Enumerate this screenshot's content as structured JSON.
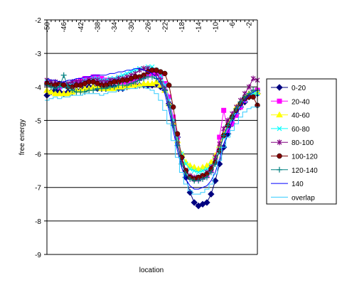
{
  "chart_data": {
    "type": "line",
    "title": "",
    "xlabel": "location",
    "ylabel": "free energy",
    "xlim": [
      -50,
      0
    ],
    "ylim": [
      -9,
      -2
    ],
    "yticks": [
      -2,
      -3,
      -4,
      -5,
      -6,
      -7,
      -8,
      -9
    ],
    "xticks": [
      -50,
      -46,
      -42,
      -38,
      -34,
      -30,
      -26,
      -22,
      -18,
      -14,
      -10,
      -6,
      -2
    ],
    "grid": "horizontal",
    "legend_position": "right",
    "x": [
      -50,
      -49,
      -48,
      -47,
      -46,
      -45,
      -44,
      -43,
      -42,
      -41,
      -40,
      -39,
      -38,
      -37,
      -36,
      -35,
      -34,
      -33,
      -32,
      -31,
      -30,
      -29,
      -28,
      -27,
      -26,
      -25,
      -24,
      -23,
      -22,
      -21,
      -20,
      -19,
      -18,
      -17,
      -16,
      -15,
      -14,
      -13,
      -12,
      -11,
      -10,
      -9,
      -8,
      -7,
      -6,
      -5,
      -4,
      -3,
      -2,
      -1,
      0
    ],
    "series": [
      {
        "name": "0-20",
        "color": "#000080",
        "marker": "diamond",
        "values": [
          -4.25,
          -4.15,
          -4.1,
          -4.15,
          -4.2,
          -4.15,
          -4.15,
          -4.1,
          -4.1,
          -4.05,
          -4.0,
          -4.0,
          -4.05,
          -4.05,
          -4.05,
          -4.0,
          -4.0,
          -4.05,
          -4.05,
          -4.0,
          -3.9,
          -3.95,
          -3.95,
          -3.95,
          -3.95,
          -3.95,
          -3.9,
          -4.0,
          -4.1,
          -4.5,
          -5.0,
          -5.5,
          -6.1,
          -6.7,
          -7.15,
          -7.45,
          -7.55,
          -7.5,
          -7.45,
          -7.2,
          -6.8,
          -6.3,
          -5.8,
          -5.4,
          -5.1,
          -4.8,
          -4.6,
          -4.45,
          -4.3,
          -4.2,
          -4.2
        ]
      },
      {
        "name": "20-40",
        "color": "#ff00ff",
        "marker": "square",
        "values": [
          -3.9,
          -3.95,
          -3.95,
          -4.0,
          -3.95,
          -3.95,
          -3.9,
          -3.85,
          -3.8,
          -3.75,
          -3.75,
          -3.7,
          -3.7,
          -3.75,
          -3.8,
          -3.8,
          -3.8,
          -3.85,
          -3.85,
          -3.85,
          -3.85,
          -3.8,
          -3.75,
          -3.7,
          -3.65,
          -3.6,
          -3.6,
          -3.7,
          -3.9,
          -4.3,
          -4.9,
          -5.5,
          -6.1,
          -6.5,
          -6.7,
          -6.75,
          -6.75,
          -6.7,
          -6.65,
          -6.5,
          -6.1,
          -5.5,
          -4.7,
          -5.3,
          -5.1,
          -4.85,
          -4.6,
          -4.4,
          -4.25,
          -4.15,
          -4.1
        ]
      },
      {
        "name": "40-60",
        "color": "#ffff00",
        "marker": "triangle",
        "values": [
          -4.1,
          -4.15,
          -4.2,
          -4.2,
          -4.2,
          -4.2,
          -4.15,
          -4.1,
          -4.1,
          -4.05,
          -4.05,
          -4.0,
          -4.0,
          -4.05,
          -4.05,
          -4.05,
          -4.05,
          -4.0,
          -4.0,
          -4.0,
          -3.95,
          -3.95,
          -3.95,
          -3.9,
          -3.9,
          -3.9,
          -3.85,
          -3.95,
          -4.1,
          -4.5,
          -5.05,
          -5.6,
          -6.0,
          -6.25,
          -6.35,
          -6.4,
          -6.45,
          -6.4,
          -6.35,
          -6.25,
          -6.05,
          -5.75,
          -5.4,
          -5.1,
          -4.85,
          -4.6,
          -4.45,
          -4.3,
          -4.2,
          -4.15,
          -4.15
        ]
      },
      {
        "name": "60-80",
        "color": "#00ffff",
        "marker": "x",
        "values": [
          -3.85,
          -3.9,
          -3.95,
          -3.95,
          -4.0,
          -3.95,
          -3.9,
          -3.85,
          -3.85,
          -3.8,
          -3.8,
          -3.75,
          -3.75,
          -3.8,
          -3.8,
          -3.75,
          -3.75,
          -3.7,
          -3.65,
          -3.6,
          -3.55,
          -3.5,
          -3.45,
          -3.45,
          -3.4,
          -3.4,
          -3.5,
          -3.65,
          -3.95,
          -4.4,
          -5.0,
          -5.55,
          -6.0,
          -6.3,
          -6.45,
          -6.5,
          -6.55,
          -6.5,
          -6.45,
          -6.35,
          -6.15,
          -5.85,
          -5.5,
          -5.2,
          -4.95,
          -4.75,
          -4.55,
          -4.4,
          -4.25,
          -4.2,
          -4.2
        ]
      },
      {
        "name": "80-100",
        "color": "#800080",
        "marker": "star",
        "values": [
          -3.8,
          -3.85,
          -3.85,
          -3.9,
          -3.9,
          -3.9,
          -3.85,
          -3.85,
          -3.85,
          -3.85,
          -3.8,
          -3.8,
          -3.8,
          -3.85,
          -3.85,
          -3.8,
          -3.8,
          -3.75,
          -3.75,
          -3.7,
          -3.65,
          -3.6,
          -3.5,
          -3.45,
          -3.45,
          -3.5,
          -3.6,
          -3.8,
          -4.05,
          -4.5,
          -5.1,
          -5.7,
          -6.2,
          -6.5,
          -6.65,
          -6.7,
          -6.7,
          -6.65,
          -6.55,
          -6.4,
          -6.1,
          -5.7,
          -5.25,
          -5.0,
          -4.8,
          -4.6,
          -4.4,
          -4.2,
          -4.0,
          -3.75,
          -3.8
        ]
      },
      {
        "name": "100-120",
        "color": "#800000",
        "marker": "circle",
        "values": [
          -3.9,
          -3.95,
          -3.95,
          -3.9,
          -3.95,
          -4.0,
          -4.0,
          -3.95,
          -3.95,
          -3.9,
          -3.85,
          -3.85,
          -3.9,
          -3.95,
          -3.95,
          -3.9,
          -3.85,
          -3.85,
          -3.8,
          -3.8,
          -3.75,
          -3.7,
          -3.7,
          -3.65,
          -3.55,
          -3.5,
          -3.5,
          -3.55,
          -3.6,
          -3.95,
          -4.6,
          -5.4,
          -6.1,
          -6.5,
          -6.7,
          -6.75,
          -6.7,
          -6.65,
          -6.6,
          -6.45,
          -6.25,
          -5.9,
          -5.45,
          -5.15,
          -4.9,
          -4.7,
          -4.5,
          -4.35,
          -4.3,
          -4.3,
          -4.55
        ]
      },
      {
        "name": "120-140",
        "color": "#008080",
        "marker": "plus",
        "values": [
          -3.95,
          -4.0,
          -4.05,
          -4.0,
          -3.65,
          -4.0,
          -4.1,
          -4.15,
          -4.15,
          -4.15,
          -4.1,
          -4.1,
          -4.05,
          -4.05,
          -4.05,
          -4.0,
          -4.0,
          -3.95,
          -3.95,
          -3.95,
          -3.9,
          -3.85,
          -3.8,
          -3.75,
          -3.7,
          -3.7,
          -3.75,
          -3.85,
          -4.1,
          -4.55,
          -5.15,
          -5.75,
          -6.3,
          -6.6,
          -6.75,
          -6.8,
          -6.8,
          -6.75,
          -6.7,
          -6.55,
          -6.3,
          -5.9,
          -5.45,
          -5.15,
          -4.9,
          -4.65,
          -4.45,
          -4.3,
          -4.2,
          -4.1,
          -4.1
        ]
      },
      {
        "name": "140",
        "color": "#0000ff",
        "marker": "none",
        "values": [
          -3.75,
          -3.8,
          -3.8,
          -3.85,
          -3.85,
          -3.8,
          -3.8,
          -3.75,
          -3.75,
          -3.7,
          -3.7,
          -3.65,
          -3.65,
          -3.65,
          -3.65,
          -3.6,
          -3.6,
          -3.55,
          -3.55,
          -3.5,
          -3.5,
          -3.45,
          -3.45,
          -3.5,
          -3.55,
          -3.6,
          -3.7,
          -3.9,
          -4.2,
          -4.7,
          -5.3,
          -5.9,
          -6.4,
          -6.75,
          -6.95,
          -7.05,
          -7.05,
          -7.0,
          -6.95,
          -6.8,
          -6.55,
          -6.15,
          -5.7,
          -5.35,
          -5.05,
          -4.8,
          -4.6,
          -4.4,
          -4.25,
          -4.15,
          -4.1
        ]
      },
      {
        "name": "overlap",
        "color": "#33ccff",
        "marker": "none",
        "values": [
          -4.4,
          -4.35,
          -4.3,
          -4.35,
          -4.3,
          -4.3,
          -4.25,
          -4.25,
          -4.25,
          -4.2,
          -4.2,
          -4.2,
          -4.2,
          -4.25,
          -4.2,
          -4.15,
          -4.15,
          -4.1,
          -4.1,
          -4.05,
          -4.05,
          -4.05,
          -4.0,
          -4.0,
          -4.05,
          -4.1,
          -4.2,
          -4.4,
          -4.7,
          -5.1,
          -5.6,
          -6.1,
          -6.55,
          -6.9,
          -7.1,
          -7.2,
          -7.2,
          -7.15,
          -7.05,
          -6.9,
          -6.6,
          -6.2,
          -5.8,
          -5.5,
          -5.3,
          -5.1,
          -4.9,
          -4.75,
          -4.65,
          -4.6,
          -4.6
        ]
      }
    ]
  }
}
